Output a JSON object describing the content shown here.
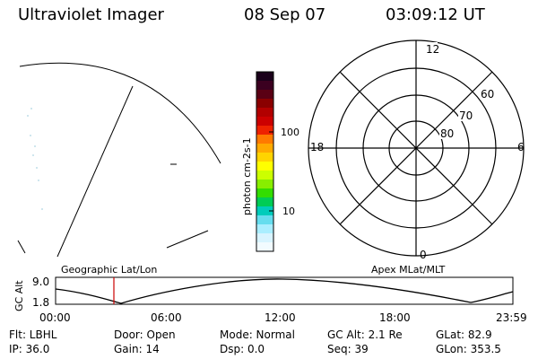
{
  "header": {
    "title": "Ultraviolet Imager",
    "date": "08 Sep 07",
    "time": "03:09:12 UT"
  },
  "colorbar": {
    "label": "photon cm-2s-1",
    "ticks": [
      {
        "value": "100"
      },
      {
        "value": "10"
      }
    ],
    "colors": [
      "#1a001a",
      "#3b0020",
      "#5a0014",
      "#8a0000",
      "#b20000",
      "#cc0000",
      "#ee2200",
      "#ff7a00",
      "#ffaa00",
      "#ffd400",
      "#ffff00",
      "#ccff00",
      "#88ee00",
      "#33dd00",
      "#00cc55",
      "#00ccbb",
      "#66ddee",
      "#aaeeff",
      "#d8f4ff",
      "#f2fbff"
    ]
  },
  "polar_plot": {
    "mlt_labels": [
      "12",
      "18",
      "6",
      "0"
    ],
    "lat_labels": [
      "60",
      "70",
      "80"
    ]
  },
  "gc_alt_panel": {
    "ylabel": "GC Alt",
    "yticks": [
      "9.0",
      "1.8"
    ],
    "left_title": "Geographic Lat/Lon",
    "right_title": "Apex MLat/MLT",
    "xticks": [
      "00:00",
      "06:00",
      "12:00",
      "18:00",
      "23:59"
    ],
    "marker_color": "#cc0000"
  },
  "info": {
    "flt": "Flt: LBHL",
    "door": "Door: Open",
    "mode": "Mode: Normal",
    "gcalt": "GC Alt: 2.1 Re",
    "glat": "GLat:  82.9",
    "ip": "IP: 36.0",
    "gain": "Gain: 14",
    "dsp": "Dsp:    0.0",
    "seq": "Seq: 39",
    "glon": "GLon: 353.5"
  }
}
